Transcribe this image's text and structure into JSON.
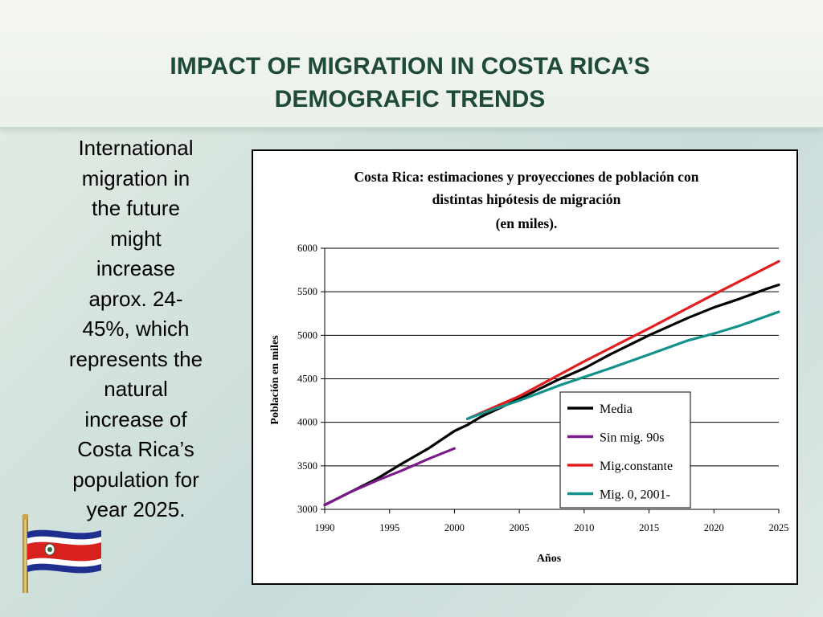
{
  "slide": {
    "title_lines": [
      "IMPACT OF MIGRATION IN COSTA RICA’S",
      "DEMOGRAFIC TRENDS"
    ],
    "side_text_lines": [
      "International",
      "migration in",
      "the future",
      "might",
      "increase",
      "aprox. 24-",
      "45%, which",
      "represents the",
      "natural",
      "increase of",
      "Costa Rica’s",
      "population for",
      "year 2025."
    ],
    "colors": {
      "title": "#1e4a3a",
      "text": "#000000"
    },
    "flag_icon": "costa-rica-flag-icon"
  },
  "chart_data": {
    "type": "line",
    "title_lines": [
      "Costa Rica: estimaciones y proyecciones de población con",
      "distintas  hipótesis de migración",
      "(en miles)."
    ],
    "xlabel": "Años",
    "ylabel": "Población en miles",
    "xlim": [
      1990,
      2025
    ],
    "ylim": [
      3000,
      6000
    ],
    "xticks": [
      "1990",
      "1995",
      "2000",
      "2005",
      "2010",
      "2015",
      "2020",
      "2025"
    ],
    "yticks": [
      "3000",
      "3500",
      "4000",
      "4500",
      "5000",
      "5500",
      "6000"
    ],
    "grid": "horizontal",
    "legend_position": "lower-right",
    "series": [
      {
        "name": "Media",
        "color": "#000000",
        "x": [
          1990,
          1992,
          1994,
          1996,
          1998,
          2000,
          2001,
          2002,
          2005,
          2008,
          2010,
          2012,
          2015,
          2018,
          2020,
          2022,
          2024,
          2025
        ],
        "y": [
          3050,
          3200,
          3350,
          3530,
          3700,
          3900,
          3970,
          4060,
          4270,
          4490,
          4620,
          4780,
          5000,
          5200,
          5320,
          5420,
          5530,
          5580
        ]
      },
      {
        "name": "Sin mig. 90s",
        "color": "#7b1a8a",
        "x": [
          1990,
          1992,
          1994,
          1996,
          1998,
          2000
        ],
        "y": [
          3050,
          3200,
          3330,
          3450,
          3580,
          3700
        ]
      },
      {
        "name": "Mig.constante",
        "color": "#e11f1f",
        "x": [
          2001,
          2005,
          2010,
          2015,
          2020,
          2025
        ],
        "y": [
          4040,
          4300,
          4700,
          5080,
          5470,
          5850
        ]
      },
      {
        "name": "Mig. 0,  2001-",
        "color": "#12918a",
        "x": [
          2001,
          2003,
          2005,
          2008,
          2010,
          2012,
          2015,
          2018,
          2020,
          2022,
          2025
        ],
        "y": [
          4040,
          4150,
          4250,
          4420,
          4520,
          4620,
          4780,
          4940,
          5020,
          5110,
          5270
        ]
      }
    ]
  }
}
